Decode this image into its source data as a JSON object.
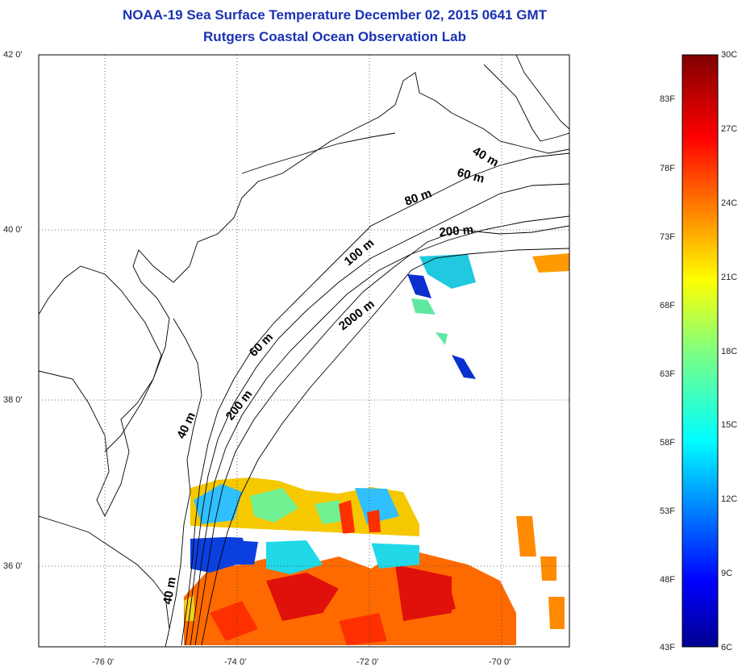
{
  "title": "NOAA-19 Sea Surface Temperature December 02, 2015 0641 GMT",
  "subtitle": "Rutgers Coastal Ocean Observation Lab",
  "axes": {
    "lat_labels": [
      "42 0'",
      "40 0'",
      "38 0'",
      "36 0'"
    ],
    "lon_labels": [
      "-76 0'",
      "-74 0'",
      "-72 0'",
      "-70 0'"
    ],
    "grid": true,
    "grid_style": "dotted"
  },
  "isobaths": [
    "40 m",
    "60 m",
    "80 m",
    "200 m",
    "100 m",
    "2000 m",
    "60 m",
    "200 m",
    "40 m",
    "40 m"
  ],
  "colorbar": {
    "fahrenheit_labels": [
      "83F",
      "78F",
      "73F",
      "68F",
      "63F",
      "58F",
      "53F",
      "48F",
      "43F"
    ],
    "celsius_labels": [
      "30C",
      "27C",
      "24C",
      "21C",
      "18C",
      "15C",
      "12C",
      "9C",
      "6C"
    ],
    "colormap": "jet",
    "range_celsius": [
      6,
      30
    ]
  },
  "colors": {
    "title": "#1a33b3",
    "coastline": "#000000",
    "background": "#ffffff"
  }
}
